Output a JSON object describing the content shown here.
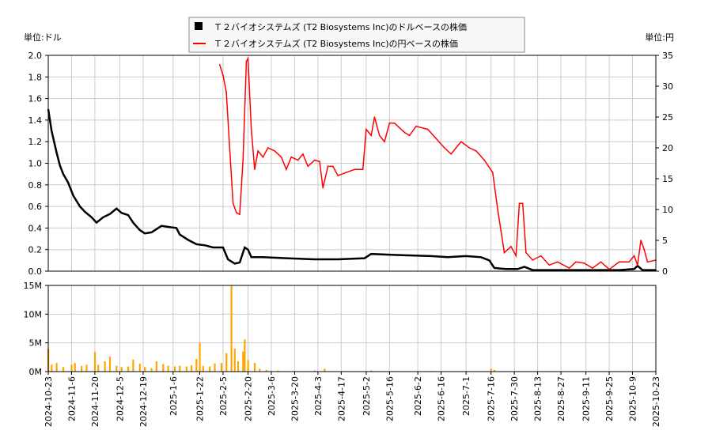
{
  "chart_data": [
    {
      "type": "line",
      "left_axis_unit": "単位:ドル",
      "right_axis_unit": "単位:円",
      "ylim": [
        0,
        2.0
      ],
      "y2lim": [
        0,
        35
      ],
      "yticks": [
        "0.0",
        "0.2",
        "0.4",
        "0.6",
        "0.8",
        "1.0",
        "1.2",
        "1.4",
        "1.6",
        "1.8",
        "2.0"
      ],
      "y2ticks": [
        "0",
        "5",
        "10",
        "15",
        "20",
        "25",
        "30",
        "35"
      ],
      "xlim": [
        "2024-10-23",
        "2025-10-23"
      ],
      "grid": true,
      "legend_placement": "top-center",
      "series": [
        {
          "name": "Ｔ２バイオシステムズ (T2 Biosystems Inc)のドルベースの株価",
          "color": "#000000",
          "axis": "left",
          "points": [
            [
              "2024-10-23",
              1.5
            ],
            [
              "2024-10-25",
              1.3
            ],
            [
              "2024-10-28",
              1.1
            ],
            [
              "2024-10-30",
              0.98
            ],
            [
              "2024-11-1",
              0.9
            ],
            [
              "2024-11-4",
              0.82
            ],
            [
              "2024-11-7",
              0.7
            ],
            [
              "2024-11-11",
              0.6
            ],
            [
              "2024-11-14",
              0.55
            ],
            [
              "2024-11-18",
              0.5
            ],
            [
              "2024-11-21",
              0.45
            ],
            [
              "2024-11-25",
              0.5
            ],
            [
              "2024-11-29",
              0.53
            ],
            [
              "2024-12-3",
              0.58
            ],
            [
              "2024-12-6",
              0.54
            ],
            [
              "2024-12-10",
              0.52
            ],
            [
              "2024-12-13",
              0.45
            ],
            [
              "2024-12-17",
              0.38
            ],
            [
              "2024-12-20",
              0.35
            ],
            [
              "2024-12-24",
              0.36
            ],
            [
              "2024-12-30",
              0.42
            ],
            [
              "2025-1-3",
              0.41
            ],
            [
              "2025-1-8",
              0.4
            ],
            [
              "2025-1-10",
              0.34
            ],
            [
              "2025-1-15",
              0.29
            ],
            [
              "2025-1-20",
              0.25
            ],
            [
              "2025-1-25",
              0.24
            ],
            [
              "2025-1-30",
              0.22
            ],
            [
              "2025-2-5",
              0.22
            ],
            [
              "2025-2-8",
              0.11
            ],
            [
              "2025-2-12",
              0.07
            ],
            [
              "2025-2-15",
              0.08
            ],
            [
              "2025-2-18",
              0.22
            ],
            [
              "2025-2-20",
              0.2
            ],
            [
              "2025-2-22",
              0.13
            ],
            [
              "2025-3-1",
              0.13
            ],
            [
              "2025-3-15",
              0.12
            ],
            [
              "2025-4-1",
              0.11
            ],
            [
              "2025-4-15",
              0.11
            ],
            [
              "2025-5-1",
              0.12
            ],
            [
              "2025-5-5",
              0.16
            ],
            [
              "2025-5-20",
              0.15
            ],
            [
              "2025-6-10",
              0.14
            ],
            [
              "2025-6-20",
              0.13
            ],
            [
              "2025-7-1",
              0.14
            ],
            [
              "2025-7-10",
              0.13
            ],
            [
              "2025-7-15",
              0.1
            ],
            [
              "2025-7-18",
              0.03
            ],
            [
              "2025-7-25",
              0.02
            ],
            [
              "2025-8-1",
              0.02
            ],
            [
              "2025-8-5",
              0.04
            ],
            [
              "2025-8-10",
              0.01
            ],
            [
              "2025-9-1",
              0.01
            ],
            [
              "2025-10-1",
              0.01
            ],
            [
              "2025-10-10",
              0.02
            ],
            [
              "2025-10-12",
              0.05
            ],
            [
              "2025-10-15",
              0.01
            ],
            [
              "2025-10-23",
              0.01
            ]
          ]
        },
        {
          "name": "Ｔ２バイオシステムズ (T2 Biosystems Inc)の円ベースの株価",
          "color": "#ff0000",
          "axis": "right",
          "points": [
            [
              "2025-2-3",
              33.5
            ],
            [
              "2025-2-5",
              31.8
            ],
            [
              "2025-2-7",
              29
            ],
            [
              "2025-2-9",
              20
            ],
            [
              "2025-2-11",
              11
            ],
            [
              "2025-2-13",
              9.5
            ],
            [
              "2025-2-15",
              9.2
            ],
            [
              "2025-2-17",
              18
            ],
            [
              "2025-2-19",
              34
            ],
            [
              "2025-2-20",
              34.5
            ],
            [
              "2025-2-22",
              23
            ],
            [
              "2025-2-24",
              16.5
            ],
            [
              "2025-2-26",
              19.5
            ],
            [
              "2025-3-1",
              18.5
            ],
            [
              "2025-3-4",
              20
            ],
            [
              "2025-3-8",
              19.5
            ],
            [
              "2025-3-12",
              18.5
            ],
            [
              "2025-3-15",
              16.5
            ],
            [
              "2025-3-18",
              18.5
            ],
            [
              "2025-3-22",
              18
            ],
            [
              "2025-3-25",
              19
            ],
            [
              "2025-3-28",
              17
            ],
            [
              "2025-4-1",
              18
            ],
            [
              "2025-4-4",
              17.8
            ],
            [
              "2025-4-6",
              13.5
            ],
            [
              "2025-4-9",
              17
            ],
            [
              "2025-4-12",
              17
            ],
            [
              "2025-4-15",
              15.5
            ],
            [
              "2025-4-20",
              16
            ],
            [
              "2025-4-25",
              16.5
            ],
            [
              "2025-4-30",
              16.5
            ],
            [
              "2025-5-2",
              23
            ],
            [
              "2025-5-5",
              22
            ],
            [
              "2025-5-7",
              25
            ],
            [
              "2025-5-10",
              22
            ],
            [
              "2025-5-13",
              21
            ],
            [
              "2025-5-16",
              24
            ],
            [
              "2025-5-19",
              24
            ],
            [
              "2025-5-25",
              22.5
            ],
            [
              "2025-5-28",
              22
            ],
            [
              "2025-6-1",
              23.5
            ],
            [
              "2025-6-8",
              23
            ],
            [
              "2025-6-13",
              21.5
            ],
            [
              "2025-6-18",
              20
            ],
            [
              "2025-6-22",
              19
            ],
            [
              "2025-6-25",
              20
            ],
            [
              "2025-6-28",
              21
            ],
            [
              "2025-7-3",
              20
            ],
            [
              "2025-7-7",
              19.5
            ],
            [
              "2025-7-12",
              18
            ],
            [
              "2025-7-17",
              16
            ],
            [
              "2025-7-20",
              10
            ],
            [
              "2025-7-24",
              3
            ],
            [
              "2025-7-28",
              4
            ],
            [
              "2025-7-31",
              2.5
            ],
            [
              "2025-8-2",
              11
            ],
            [
              "2025-8-4",
              11
            ],
            [
              "2025-8-6",
              3
            ],
            [
              "2025-8-10",
              1.8
            ],
            [
              "2025-8-15",
              2.5
            ],
            [
              "2025-8-20",
              1
            ],
            [
              "2025-8-25",
              1.5
            ],
            [
              "2025-9-1",
              0.5
            ],
            [
              "2025-9-5",
              1.5
            ],
            [
              "2025-9-10",
              1.3
            ],
            [
              "2025-9-15",
              0.5
            ],
            [
              "2025-9-20",
              1.5
            ],
            [
              "2025-9-25",
              0.3
            ],
            [
              "2025-10-1",
              1.5
            ],
            [
              "2025-10-7",
              1.5
            ],
            [
              "2025-10-10",
              2.5
            ],
            [
              "2025-10-12",
              1
            ],
            [
              "2025-10-14",
              5
            ],
            [
              "2025-10-16",
              3.5
            ],
            [
              "2025-10-18",
              1.5
            ],
            [
              "2025-10-23",
              1.8
            ]
          ]
        }
      ]
    },
    {
      "type": "bar",
      "color": "#ffa500",
      "ylim": [
        0,
        15
      ],
      "yticks": [
        "0M",
        "5M",
        "10M",
        "15M"
      ],
      "xticks": [
        "2024-10-23",
        "2024-11-6",
        "2024-11-20",
        "2024-12-5",
        "2024-12-19",
        "2025-1-6",
        "2025-1-22",
        "2025-2-5",
        "2025-2-20",
        "2025-3-6",
        "2025-3-20",
        "2025-4-3",
        "2025-4-17",
        "2025-5-2",
        "2025-5-16",
        "2025-6-2",
        "2025-6-16",
        "2025-7-1",
        "2025-7-16",
        "2025-7-30",
        "2025-8-13",
        "2025-8-27",
        "2025-9-11",
        "2025-9-25",
        "2025-10-9",
        "2025-10-23"
      ],
      "grid": true,
      "unit": "M",
      "points": [
        [
          "2024-10-23",
          4
        ],
        [
          "2024-10-25",
          1.2
        ],
        [
          "2024-10-28",
          1.5
        ],
        [
          "2024-11-1",
          0.8
        ],
        [
          "2024-11-6",
          1.2
        ],
        [
          "2024-11-8",
          1.5
        ],
        [
          "2024-11-12",
          1.0
        ],
        [
          "2024-11-15",
          1.2
        ],
        [
          "2024-11-20",
          3.4
        ],
        [
          "2024-11-22",
          1.2
        ],
        [
          "2024-11-26",
          1.8
        ],
        [
          "2024-11-29",
          2.6
        ],
        [
          "2024-12-3",
          1.0
        ],
        [
          "2024-12-6",
          0.8
        ],
        [
          "2024-12-10",
          0.9
        ],
        [
          "2024-12-13",
          2.1
        ],
        [
          "2024-12-17",
          1.4
        ],
        [
          "2024-12-20",
          0.8
        ],
        [
          "2024-12-24",
          0.6
        ],
        [
          "2024-12-27",
          1.8
        ],
        [
          "2024-12-31",
          1.3
        ],
        [
          "2025-1-3",
          1.0
        ],
        [
          "2025-1-7",
          0.9
        ],
        [
          "2025-1-10",
          1.0
        ],
        [
          "2025-1-14",
          0.9
        ],
        [
          "2025-1-17",
          1.1
        ],
        [
          "2025-1-20",
          2.2
        ],
        [
          "2025-1-22",
          5
        ],
        [
          "2025-1-24",
          1.0
        ],
        [
          "2025-1-28",
          0.9
        ],
        [
          "2025-1-31",
          1.4
        ],
        [
          "2025-2-4",
          1.5
        ],
        [
          "2025-2-7",
          3.2
        ],
        [
          "2025-2-10",
          15
        ],
        [
          "2025-2-12",
          4
        ],
        [
          "2025-2-14",
          1.8
        ],
        [
          "2025-2-17",
          3.5
        ],
        [
          "2025-2-18",
          5.6
        ],
        [
          "2025-2-20",
          2.0
        ],
        [
          "2025-2-24",
          1.5
        ],
        [
          "2025-2-27",
          0.5
        ],
        [
          "2025-3-3",
          0.3
        ],
        [
          "2025-3-10",
          0.2
        ],
        [
          "2025-3-20",
          0.1
        ],
        [
          "2025-4-1",
          0.2
        ],
        [
          "2025-4-7",
          0.5
        ],
        [
          "2025-4-20",
          0.1
        ],
        [
          "2025-5-5",
          0.2
        ],
        [
          "2025-5-20",
          0.1
        ],
        [
          "2025-6-10",
          0.1
        ],
        [
          "2025-7-1",
          0.1
        ],
        [
          "2025-7-16",
          0.5
        ],
        [
          "2025-7-18",
          0.3
        ],
        [
          "2025-8-1",
          0.05
        ],
        [
          "2025-9-1",
          0.05
        ],
        [
          "2025-10-1",
          0.05
        ],
        [
          "2025-10-20",
          0.05
        ]
      ]
    }
  ]
}
